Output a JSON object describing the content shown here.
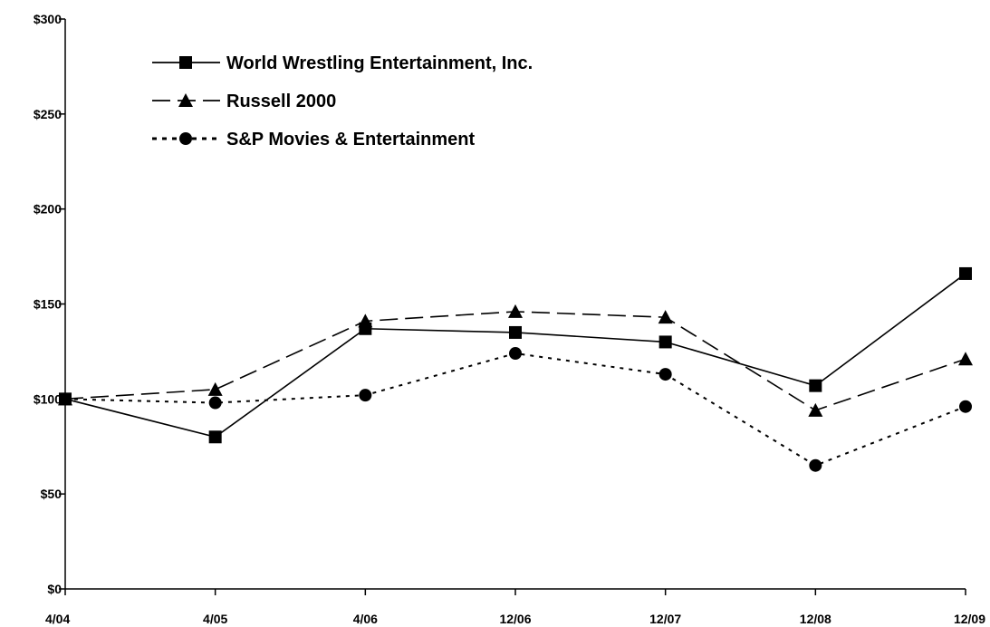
{
  "chart_data": {
    "type": "line",
    "title": "",
    "xlabel": "",
    "ylabel": "",
    "categories": [
      "4/04",
      "4/05",
      "4/06",
      "12/06",
      "12/07",
      "12/08",
      "12/09"
    ],
    "ylim": [
      0,
      300
    ],
    "yticks": [
      0,
      50,
      100,
      150,
      200,
      250,
      300
    ],
    "ytick_labels": [
      "$0",
      "$50",
      "$100",
      "$150",
      "$200",
      "$250",
      "$300"
    ],
    "grid": false,
    "legend_position": "top-left",
    "series": [
      {
        "name": "World Wrestling Entertainment, Inc.",
        "values": [
          100,
          80,
          137,
          135,
          130,
          107,
          166
        ],
        "line_style": "solid",
        "marker": "square",
        "color": "#000000"
      },
      {
        "name": "Russell 2000",
        "values": [
          100,
          105,
          141,
          146,
          143,
          94,
          121
        ],
        "line_style": "dashed",
        "marker": "triangle",
        "color": "#000000"
      },
      {
        "name": "S&P Movies & Entertainment",
        "values": [
          100,
          98,
          102,
          124,
          113,
          65,
          96
        ],
        "line_style": "dotted",
        "marker": "circle",
        "color": "#000000"
      }
    ]
  }
}
